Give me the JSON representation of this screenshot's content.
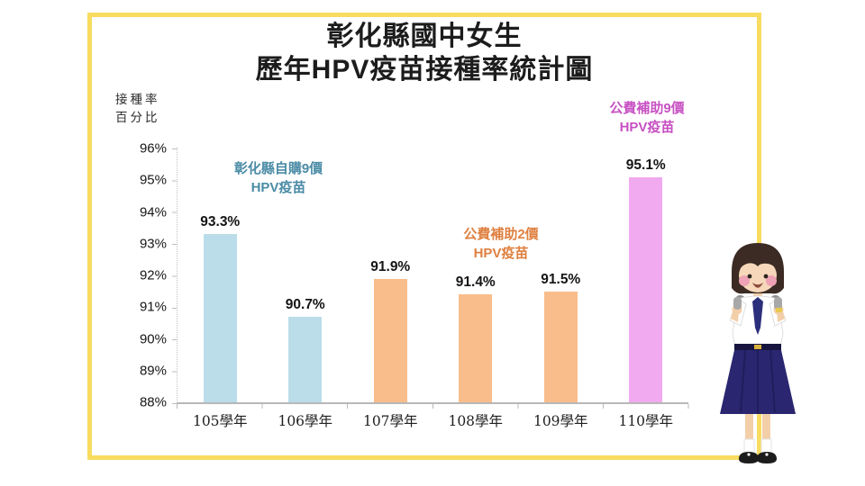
{
  "frame": {
    "border_color": "#F8DC5F"
  },
  "title": {
    "line1": "彰化縣國中女生",
    "line2": "歷年HPV疫苗接種率統計圖"
  },
  "y_axis_unit": {
    "line1": "接種率",
    "line2": "百分比"
  },
  "chart_data": {
    "type": "bar",
    "title": "彰化縣國中女生 歷年HPV疫苗接種率統計圖",
    "categories": [
      "105學年",
      "106學年",
      "107學年",
      "108學年",
      "109學年",
      "110學年"
    ],
    "values": [
      93.3,
      90.7,
      91.9,
      91.4,
      91.5,
      95.1
    ],
    "value_labels": [
      "93.3%",
      "90.7%",
      "91.9%",
      "91.4%",
      "91.5%",
      "95.1%"
    ],
    "bar_colors": [
      "#BADDE9",
      "#BADDE9",
      "#F8BD8A",
      "#F8BD8A",
      "#F8BD8A",
      "#F1A9F0"
    ],
    "ylabel": "接種率百分比",
    "xlabel": "",
    "ylim": [
      88,
      96
    ],
    "yticks": [
      "96%",
      "95%",
      "94%",
      "93%",
      "92%",
      "91%",
      "90%",
      "89%",
      "88%"
    ],
    "grid": false,
    "legend": "none",
    "annotations": [
      {
        "line1": "彰化縣自購9價",
        "line2": "HPV疫苗",
        "color": "#4B8CA6",
        "applies_to": "105-106學年"
      },
      {
        "line1": "公費補助2價",
        "line2": "HPV疫苗",
        "color": "#DF8040",
        "applies_to": "107-109學年"
      },
      {
        "line1": "公費補助9價",
        "line2": "HPV疫苗",
        "color": "#C751C3",
        "applies_to": "110學年"
      }
    ]
  },
  "illustration": {
    "name": "school-girl-illustration"
  }
}
